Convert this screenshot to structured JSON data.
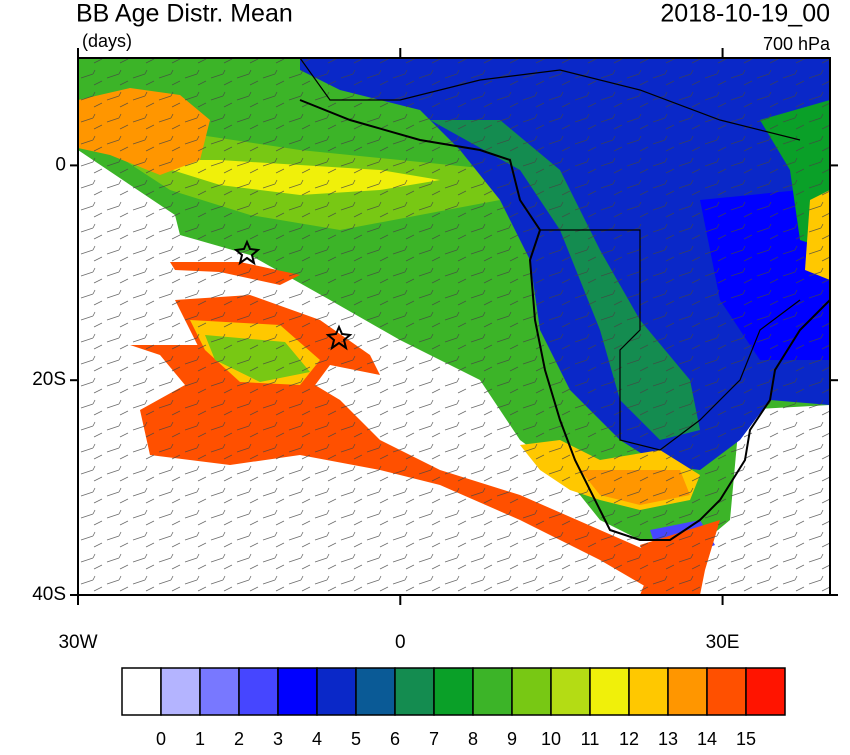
{
  "header": {
    "title": "BB Age Distr. Mean",
    "units": "(days)",
    "date": "2018-10-19_00",
    "level": "700 hPa"
  },
  "axes": {
    "lonlim": [
      -30,
      40
    ],
    "latlim": [
      -40,
      10
    ],
    "lat_ticks": [
      {
        "value": 0,
        "label": "0"
      },
      {
        "value": -20,
        "label": "20S"
      },
      {
        "value": -40,
        "label": "40S"
      }
    ],
    "lon_ticks": [
      {
        "value": -30,
        "label": "30W"
      },
      {
        "value": 0,
        "label": "0"
      },
      {
        "value": 30,
        "label": "30E"
      }
    ]
  },
  "colorbar": {
    "levels": [
      0,
      1,
      2,
      3,
      4,
      5,
      6,
      7,
      8,
      9,
      10,
      11,
      12,
      13,
      14,
      15
    ],
    "colors": [
      "#ffffff",
      "#b4b4ff",
      "#7878ff",
      "#4646ff",
      "#0000ff",
      "#0a28c8",
      "#0a5a96",
      "#148c50",
      "#0aa028",
      "#3cb428",
      "#78c814",
      "#b4dc14",
      "#f0f00a",
      "#ffc800",
      "#ff9600",
      "#ff5000",
      "#ff1400"
    ]
  }
}
